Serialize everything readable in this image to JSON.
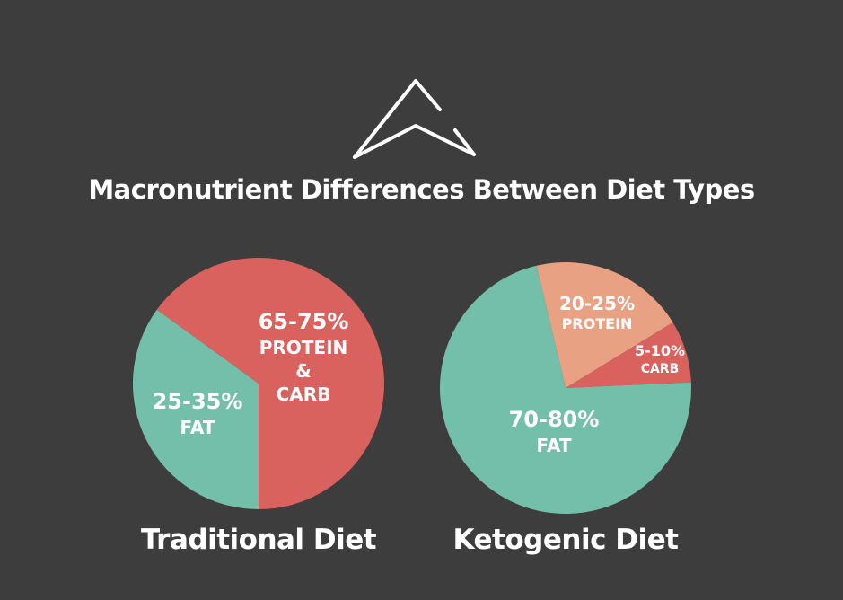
{
  "title": "Macronutrient Differences Between Diet Types",
  "chart_data": [
    {
      "type": "pie",
      "title": "Traditional Diet",
      "categories": [
        "FAT",
        "PROTEIN\n&\nCARB"
      ],
      "values": [
        35,
        65
      ],
      "value_labels": [
        "25-35%",
        "65-75%"
      ],
      "colors": [
        "#74bfaa",
        "#d9625f"
      ]
    },
    {
      "type": "pie",
      "title": "Ketogenic Diet",
      "categories": [
        "PROTEIN",
        "CARB",
        "FAT"
      ],
      "values": [
        20,
        8,
        72
      ],
      "value_labels": [
        "20-25%",
        "5-10%",
        "70-80%"
      ],
      "colors": [
        "#e9a183",
        "#d9625f",
        "#74bfaa"
      ]
    }
  ]
}
